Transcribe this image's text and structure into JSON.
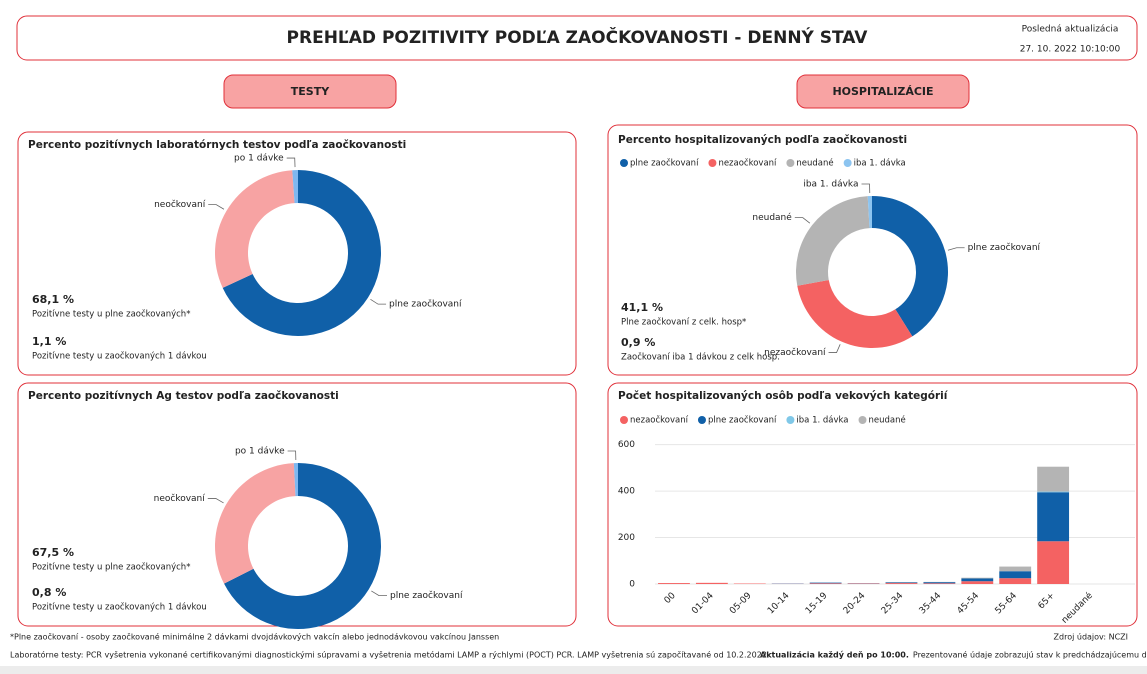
{
  "header": {
    "title": "PREHĽAD POZITIVITY PODĽA ZAOČKOVANOSTI - DENNÝ STAV",
    "update_label": "Posledná aktualizácia",
    "update_time": "27. 10. 2022 10:10:00"
  },
  "sections": [
    "TESTY",
    "HOSPITALIZÁCIE"
  ],
  "chart_data": [
    {
      "type": "pie",
      "title": "Percento pozitívnych laboratórnych testov podľa zaočkovanosti",
      "categories": [
        "plne zaočkovaní",
        "neočkovaní",
        "po 1 dávke"
      ],
      "values": [
        68.1,
        30.8,
        1.1
      ],
      "colors": [
        "#1060a8",
        "#f7a3a3",
        "#7fb8f0"
      ],
      "legend": false,
      "annotations": [
        {
          "value": "68,1 %",
          "label": "Pozitívne testy u plne zaočkovaných*"
        },
        {
          "value": "1,1 %",
          "label": "Pozitívne testy u zaočkovaných 1 dávkou"
        }
      ]
    },
    {
      "type": "pie",
      "title": "Percento pozitívnych Ag testov podľa zaočkovanosti",
      "categories": [
        "plne zaočkovaní",
        "neočkovaní",
        "po 1 dávke"
      ],
      "values": [
        67.5,
        31.7,
        0.8
      ],
      "colors": [
        "#1060a8",
        "#f7a3a3",
        "#7fb8f0"
      ],
      "legend": false,
      "annotations": [
        {
          "value": "67,5 %",
          "label": "Pozitívne testy u plne zaočkovaných*"
        },
        {
          "value": "0,8 %",
          "label": "Pozitívne testy u zaočkovaných 1 dávkou"
        }
      ]
    },
    {
      "type": "pie",
      "title": "Percento hospitalizovaných podľa zaočkovanosti",
      "categories": [
        "plne zaočkovaní",
        "nezaočkovaní",
        "neudané",
        "iba 1. dávka"
      ],
      "values": [
        41.1,
        31,
        27,
        0.9
      ],
      "colors": [
        "#1060a8",
        "#f46262",
        "#b4b4b4",
        "#8cc4f0"
      ],
      "legend": true,
      "annotations": [
        {
          "value": "41,1 %",
          "label": "Plne zaočkovaní z celk. hosp*"
        },
        {
          "value": "0,9 %",
          "label": "Zaočkovaní iba 1 dávkou z celk hosp."
        }
      ]
    },
    {
      "type": "bar",
      "stacked": true,
      "title": "Počet hospitalizovaných osôb podľa vekových kategórií",
      "categories": [
        "00",
        "01-04",
        "05-09",
        "10-14",
        "15-19",
        "20-24",
        "25-34",
        "35-44",
        "45-54",
        "55-64",
        "65+",
        "neudané"
      ],
      "series": [
        {
          "name": "nezaočkovaní",
          "color": "#f46262",
          "values": [
            4,
            5,
            2,
            1,
            3,
            2,
            4,
            3,
            12,
            25,
            184,
            0
          ]
        },
        {
          "name": "plne zaočkovaní",
          "color": "#1060a8",
          "values": [
            0,
            0,
            0,
            1,
            3,
            1,
            3,
            5,
            12,
            30,
            211,
            0
          ]
        },
        {
          "name": "iba 1. dávka",
          "color": "#80c8e8",
          "values": [
            0,
            0,
            0,
            0,
            0,
            0,
            0,
            0,
            0,
            0,
            3,
            0
          ]
        },
        {
          "name": "neudané",
          "color": "#b4b4b4",
          "values": [
            0,
            0,
            0,
            0,
            0,
            0,
            1,
            1,
            3,
            20,
            107,
            0
          ]
        }
      ],
      "ylim": [
        0,
        620
      ],
      "yticks": [
        0,
        200,
        400,
        600
      ],
      "grid": true,
      "legend": true
    }
  ],
  "footer": {
    "note": "*Plne zaočkovaní - osoby zaočkované minimálne 2 dávkami dvojdávkových vakcín alebo jednodávkovou vakcínou Janssen",
    "source": "Zdroj údajov: NCZI",
    "lab_note": "Laboratórne testy: PCR vyšetrenia vykonané certifikovanými diagnostickými súpravami a vyšetrenia metódami LAMP a rýchlymi (POCT) PCR. LAMP vyšetrenia sú započítavané od 10.2.2022.",
    "update_bold": "Aktualizácia každý deň po 10:00.",
    "update_rest": "Prezentované údaje zobrazujú stav k predchádzajúcemu dňu."
  }
}
